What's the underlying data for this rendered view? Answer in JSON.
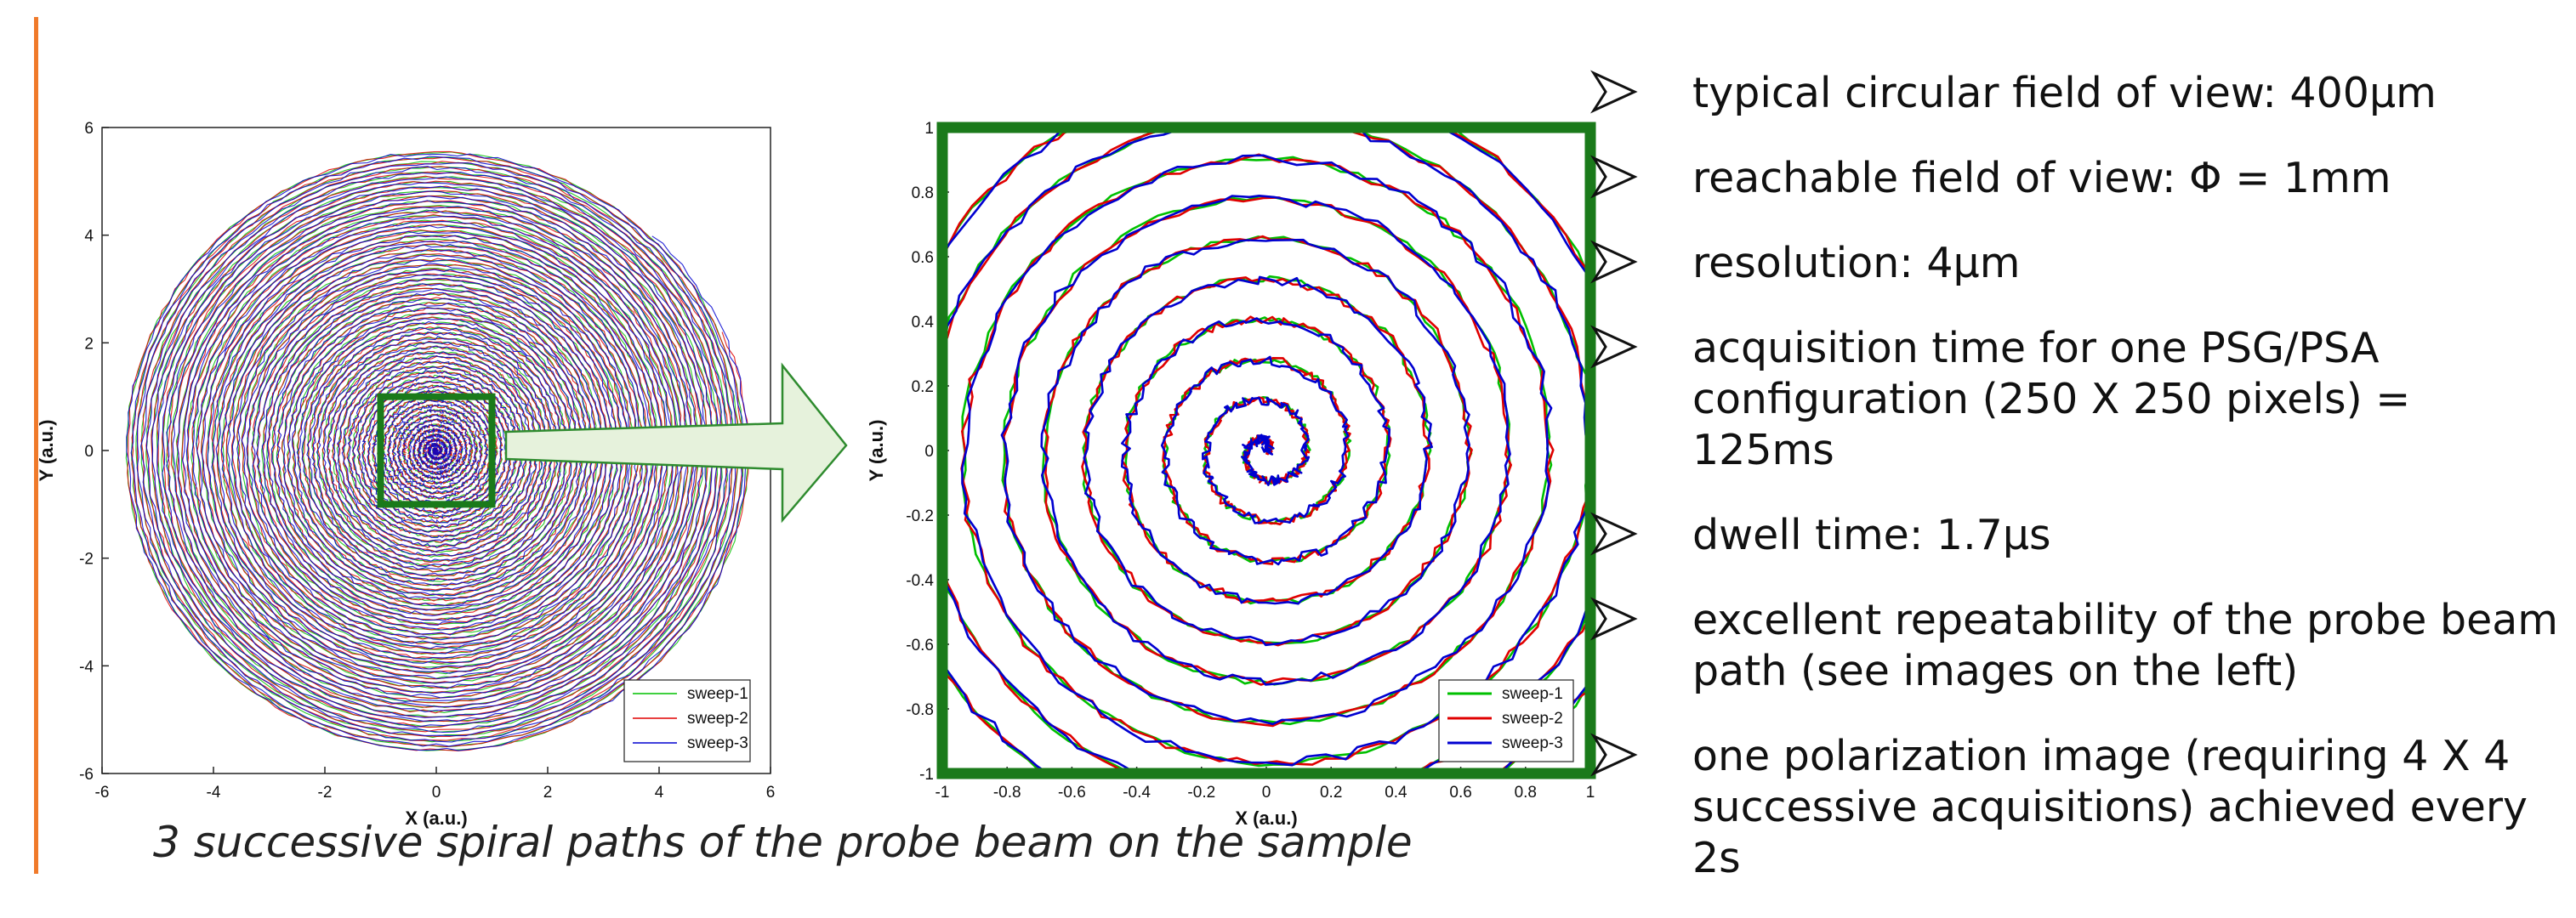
{
  "chart_data": [
    {
      "type": "line",
      "title": "",
      "xlabel": "X (a.u.)",
      "ylabel": "Y (a.u.)",
      "xlim": [
        -6,
        6
      ],
      "ylim": [
        -6,
        6
      ],
      "x_ticks": [
        "-6",
        "-4",
        "-2",
        "0",
        "2",
        "4",
        "6"
      ],
      "y_ticks": [
        "-6",
        "-4",
        "-2",
        "0",
        "2",
        "4",
        "6"
      ],
      "grid": false,
      "legend_position": "bottom-right",
      "series": [
        {
          "name": "sweep-1",
          "color": "#00C000",
          "shape": "spiral",
          "max_radius": 5.6
        },
        {
          "name": "sweep-2",
          "color": "#E00000",
          "shape": "spiral",
          "max_radius": 5.6
        },
        {
          "name": "sweep-3",
          "color": "#0000D0",
          "shape": "spiral",
          "max_radius": 5.6
        }
      ],
      "zoom_box": {
        "x": [
          -1,
          1
        ],
        "y": [
          -1,
          1
        ],
        "color": "#1A7A1A"
      }
    },
    {
      "type": "line",
      "title": "",
      "xlabel": "X (a.u.)",
      "ylabel": "Y (a.u.)",
      "xlim": [
        -1,
        1
      ],
      "ylim": [
        -1,
        1
      ],
      "x_ticks": [
        "-1",
        "-0.8",
        "-0.6",
        "-0.4",
        "-0.2",
        "0",
        "0.2",
        "0.4",
        "0.6",
        "0.8",
        "1"
      ],
      "y_ticks": [
        "-1",
        "-0.8",
        "-0.6",
        "-0.4",
        "-0.2",
        "0",
        "0.2",
        "0.4",
        "0.6",
        "0.8",
        "1"
      ],
      "grid": false,
      "legend_position": "bottom-right",
      "series": [
        {
          "name": "sweep-1",
          "color": "#00C000",
          "shape": "spiral",
          "turns": 10
        },
        {
          "name": "sweep-2",
          "color": "#E00000",
          "shape": "spiral",
          "turns": 10
        },
        {
          "name": "sweep-3",
          "color": "#0000D0",
          "shape": "spiral",
          "turns": 10
        }
      ],
      "frame_color": "#1A7A1A"
    }
  ],
  "colors": {
    "accent_bar": "#F07A2A",
    "zoom_frame": "#1A7A1A",
    "arrow_fill": "#E6F2DC",
    "arrow_stroke": "#2E8B2E"
  },
  "caption": "3 successive spiral paths of the probe beam on the sample",
  "bullets": [
    "typical circular field of view: 400µm",
    "reachable field of view: Φ = 1mm",
    "resolution: 4µm",
    "acquisition time  for one PSG/PSA configuration (250 X 250 pixels) = 125ms",
    "dwell time: 1.7µs",
    "excellent repeatability of the probe beam path (see images on the left)",
    "one polarization image (requiring 4 X 4 successive acquisitions) achieved every 2s"
  ]
}
